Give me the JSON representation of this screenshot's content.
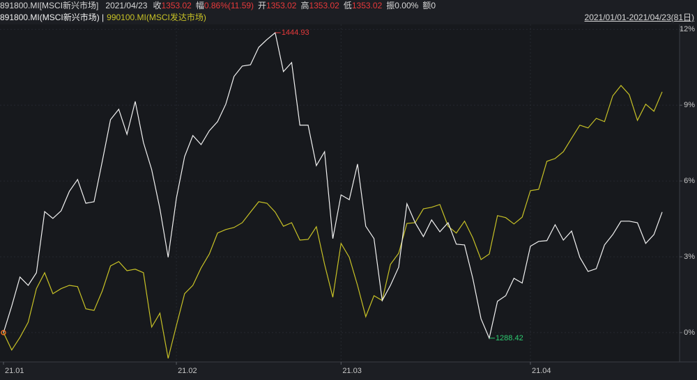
{
  "header": {
    "name": "891800.MI[MSCI新兴市场]",
    "date": "2021/04/23",
    "fields": [
      {
        "label": "收",
        "value": "1353.02",
        "color": "#e8393a"
      },
      {
        "label": "幅",
        "value": "0.86%(11.59)",
        "color": "#e8393a"
      },
      {
        "label": "开",
        "value": "1353.02",
        "color": "#e8393a"
      },
      {
        "label": "高",
        "value": "1353.02",
        "color": "#e8393a"
      },
      {
        "label": "低",
        "value": "1353.02",
        "color": "#e8393a"
      },
      {
        "label": "振",
        "value": "0.00%",
        "color": "#d8d8d8"
      },
      {
        "label": "额",
        "value": "0",
        "color": "#d8d8d8"
      }
    ]
  },
  "chart_data": {
    "type": "line",
    "legend": [
      "891800.MI(MSCI新兴市场) |",
      "990100.MI(MSCI发达市场)"
    ],
    "date_range": "2021/01/01-2021/04/23(81日)",
    "xlim": [
      0,
      80
    ],
    "xticks": [
      {
        "value": 0,
        "label": "21.01"
      },
      {
        "value": 21,
        "label": "21.02"
      },
      {
        "value": 41,
        "label": "21.03"
      },
      {
        "value": 64,
        "label": "21.04"
      }
    ],
    "ylim": [
      -1.16,
      12.2
    ],
    "yticks": [
      {
        "value": 0,
        "label": "0%"
      },
      {
        "value": 3,
        "label": "3%"
      },
      {
        "value": 6,
        "label": "6%"
      },
      {
        "value": 9,
        "label": "9%"
      },
      {
        "value": 12,
        "label": "12%"
      }
    ],
    "grid": true,
    "series": [
      {
        "name": "891800.MI(MSCI新兴市场)",
        "color": "#f2f2f2",
        "values": [
          0,
          1.05,
          2.2,
          1.87,
          2.37,
          4.79,
          4.52,
          4.82,
          5.59,
          6.06,
          5.12,
          5.18,
          6.78,
          8.43,
          8.84,
          7.85,
          9.15,
          7.52,
          6.45,
          4.9,
          2.98,
          5.32,
          6.97,
          7.8,
          7.44,
          7.99,
          8.35,
          9.04,
          10.14,
          10.55,
          10.6,
          11.29,
          11.6,
          11.87,
          10.33,
          10.69,
          8.21,
          8.21,
          6.61,
          7.16,
          3.72,
          5.45,
          5.26,
          6.67,
          4.21,
          3.72,
          1.27,
          1.87,
          2.59,
          5.1,
          4.35,
          3.8,
          4.46,
          3.99,
          4.35,
          3.5,
          3.47,
          2.15,
          0.55,
          -0.22,
          1.24,
          1.46,
          2.15,
          1.96,
          3.42,
          3.61,
          3.64,
          4.27,
          3.66,
          4.02,
          2.98,
          2.42,
          2.53,
          3.47,
          3.88,
          4.41,
          4.41,
          4.35,
          3.53,
          3.88,
          4.77
        ]
      },
      {
        "name": "990100.MI(MSCI发达市场)",
        "color": "#c8c226",
        "values": [
          0,
          -0.69,
          -0.19,
          0.41,
          1.74,
          2.37,
          1.54,
          1.74,
          1.87,
          1.82,
          0.94,
          0.88,
          1.65,
          2.64,
          2.81,
          2.45,
          2.51,
          2.37,
          0.22,
          0.77,
          -1.02,
          0.28,
          1.54,
          1.87,
          2.56,
          3.11,
          3.94,
          4.08,
          4.16,
          4.35,
          4.77,
          5.18,
          5.12,
          4.77,
          4.21,
          4.35,
          3.66,
          3.69,
          4.19,
          2.7,
          1.4,
          3.53,
          2.98,
          1.87,
          0.63,
          1.46,
          1.27,
          2.7,
          3.14,
          4.32,
          4.35,
          4.9,
          4.96,
          5.07,
          4.21,
          3.94,
          4.41,
          3.75,
          2.89,
          3.11,
          4.63,
          4.55,
          4.3,
          4.57,
          5.62,
          5.67,
          6.78,
          6.89,
          7.16,
          7.69,
          8.21,
          8.1,
          8.48,
          8.35,
          9.37,
          9.78,
          9.42,
          8.4,
          9.04,
          8.76,
          9.53
        ]
      }
    ],
    "annotations": [
      {
        "text": "1444.93",
        "x": 33,
        "series": 0,
        "color": "#e8393a"
      },
      {
        "text": "1288.42",
        "x": 59,
        "series": 0,
        "color": "#2ecc71"
      }
    ]
  }
}
